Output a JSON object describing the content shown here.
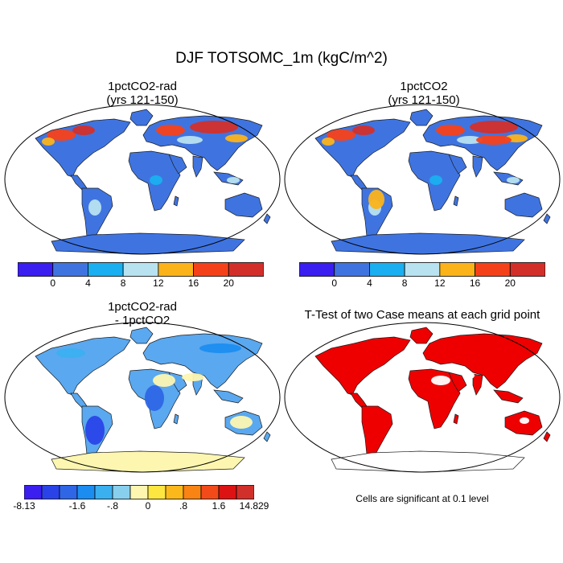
{
  "title": "DJF TOTSOMC_1m (kgC/m^2)",
  "panels": [
    {
      "title1": "1pctCO2-rad",
      "title2": "(yrs 121-150)"
    },
    {
      "title1": "1pctCO2",
      "title2": "(yrs 121-150)"
    },
    {
      "title1": "1pctCO2-rad",
      "title2": "- 1pctCO2"
    },
    {
      "title1": "T-Test of two Case means at each grid point",
      "title2": ""
    }
  ],
  "colorbar_abs": {
    "colors": [
      "#3b1ef0",
      "#3f74e0",
      "#1aaff0",
      "#b8e2f0",
      "#fbb31a",
      "#f5411a",
      "#d32f2a"
    ],
    "labels": [
      "0",
      "4",
      "8",
      "12",
      "16",
      "20"
    ]
  },
  "colorbar_diff": {
    "colors": [
      "#3b1ef0",
      "#2a43e8",
      "#2e66e6",
      "#1c8df0",
      "#3bb0f0",
      "#88cfee",
      "#fdf6b0",
      "#fde640",
      "#fbb81a",
      "#f98414",
      "#f34a1a",
      "#dd1313",
      "#d1302a"
    ],
    "labels": [
      "-8.13",
      "-1.6",
      "-.8",
      "0",
      ".8",
      "1.6",
      "14.829"
    ]
  },
  "note": "Cells are significant at 0.1 level",
  "colors": {
    "ocean": "#ffffff",
    "land_abs_base": "#3f74e0",
    "land_diff_base": "#5aa8ef",
    "diff_antarctica": "#fdf6b0",
    "significant": "#ee0000"
  }
}
